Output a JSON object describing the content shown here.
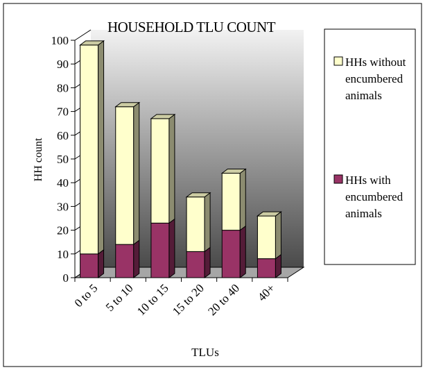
{
  "chart_data": {
    "type": "bar",
    "stacked": true,
    "three_d": true,
    "title": "HOUSEHOLD TLU COUNT",
    "xlabel": "TLUs",
    "ylabel": "HH count",
    "categories": [
      "0 to 5",
      "5 to 10",
      "10 to 15",
      "15 to 20",
      "20 to 40",
      "40+"
    ],
    "ylim": [
      0,
      100
    ],
    "yticks": [
      0,
      10,
      20,
      30,
      40,
      50,
      60,
      70,
      80,
      90,
      100
    ],
    "series": [
      {
        "name": "HHs with encumbered animals",
        "values": [
          10,
          14,
          23,
          11,
          20,
          8
        ],
        "color": "#993366"
      },
      {
        "name": "HHs without encumbered animals",
        "values": [
          88,
          58,
          44,
          23,
          24,
          18
        ],
        "color": "#ffffcc"
      }
    ],
    "legend": {
      "position": "right",
      "entries": [
        {
          "lines": [
            "HHs without",
            "encumbered",
            "animals"
          ],
          "color": "#ffffcc"
        },
        {
          "lines": [
            "HHs with",
            "encumbered",
            "animals"
          ],
          "color": "#993366"
        }
      ]
    },
    "wall_gradient": [
      "#f2f2f2",
      "#4a4a4a"
    ],
    "grid": false
  }
}
